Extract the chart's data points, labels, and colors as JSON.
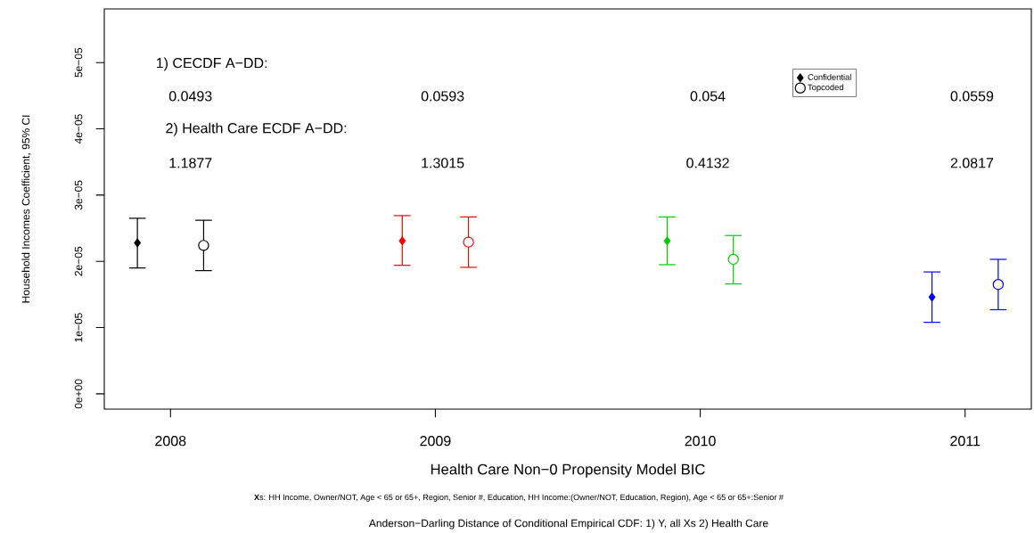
{
  "chart_data": {
    "type": "scatter",
    "xlabel": "Health Care Non−0 Propensity Model BIC",
    "ylabel": "Household Incomes Coefficient, 95% CI",
    "xlim": [
      2007.75,
      2011.25
    ],
    "xticks": [
      2008,
      2009,
      2010,
      2011
    ],
    "ylim": [
      -2.3e-06,
      5.81e-05
    ],
    "yticks": [
      {
        "value": 0,
        "label": "0e+00"
      },
      {
        "value": 1e-05,
        "label": "1e−05"
      },
      {
        "value": 2e-05,
        "label": "2e−05"
      },
      {
        "value": 3e-05,
        "label": "3e−05"
      },
      {
        "value": 4e-05,
        "label": "4e−05"
      },
      {
        "value": 5e-05,
        "label": "5e−05"
      }
    ],
    "legend": "top right",
    "series": [
      {
        "name": "Confidential",
        "marker": "diamond",
        "x": [
          2007.875,
          2008.875,
          2009.875,
          2010.875
        ],
        "values": [
          2.28e-05,
          2.31e-05,
          2.31e-05,
          1.46e-05
        ],
        "errors": [
          [
            1.9e-05,
            2.65e-05
          ],
          [
            1.94e-05,
            2.69e-05
          ],
          [
            1.95e-05,
            2.67e-05
          ],
          [
            1.08e-05,
            1.84e-05
          ]
        ],
        "colors": [
          "#000000",
          "#ff0000",
          "#00cd00",
          "#0000ff"
        ]
      },
      {
        "name": "Topcoded",
        "marker": "circle",
        "x": [
          2008.125,
          2009.125,
          2010.125,
          2011.125
        ],
        "values": [
          2.24e-05,
          2.29e-05,
          2.03e-05,
          1.65e-05
        ],
        "errors": [
          [
            1.86e-05,
            2.62e-05
          ],
          [
            1.91e-05,
            2.67e-05
          ],
          [
            1.66e-05,
            2.39e-05
          ],
          [
            1.27e-05,
            2.03e-05
          ]
        ],
        "colors": [
          "#000000",
          "#ff0000",
          "#00cd00",
          "#0000ff"
        ]
      }
    ],
    "annotations": [
      "1) CECDF A−DD:",
      "0.0493",
      "0.0593",
      "0.054",
      "0.0559",
      "2) Health Care ECDF A−DD:",
      "1.1877",
      "1.3015",
      "0.4132",
      "2.0817",
      "**X**s: HH Income, Owner/NOT, Age < 65 or 65+, Region, Senior #, Education, HH Income:(Owner/NOT, Education, Region), Age < 65 or 65+:Senior #",
      "Anderson−Darling Distance of Conditional Empirical CDF: 1) Y, all Xs  2) Health Care"
    ]
  }
}
